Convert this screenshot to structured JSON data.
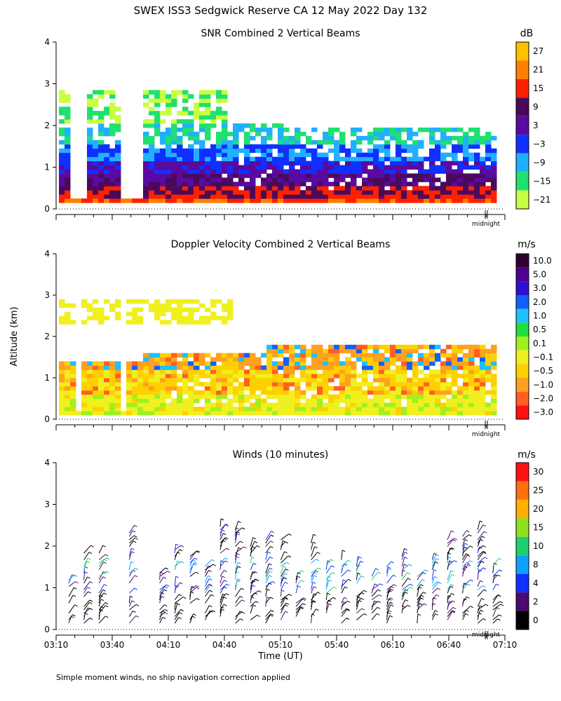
{
  "page": {
    "title": "SWEX ISS3 Sedgwick Reserve CA  12 May 2022 Day 132",
    "y_axis_label": "Altitude (km)",
    "x_axis_label": "Time (UT)",
    "footnote": "Simple moment winds, no ship navigation correction applied",
    "midnight_label": "midnight"
  },
  "chart_data": [
    {
      "type": "heatmap",
      "title": "SNR Combined 2 Vertical Beams",
      "ylim": [
        0,
        4
      ],
      "yticks": [
        "0",
        "1",
        "2",
        "3",
        "4"
      ],
      "colorbar": {
        "unit": "dB",
        "labels": [
          "27",
          "21",
          "15",
          "9",
          "3",
          "−3",
          "−9",
          "−15",
          "−21"
        ],
        "colors": [
          "#ffc000",
          "#ff8000",
          "#ff2000",
          "#4a0a5c",
          "#5a0aa0",
          "#1030ff",
          "#20b0ff",
          "#20e070",
          "#c8ff40"
        ]
      }
    },
    {
      "type": "heatmap",
      "title": "Doppler Velocity Combined 2 Vertical Beams",
      "ylim": [
        0,
        4
      ],
      "yticks": [
        "0",
        "1",
        "2",
        "3",
        "4"
      ],
      "colorbar": {
        "unit": "m/s",
        "labels": [
          "10.0",
          "5.0",
          "3.0",
          "2.0",
          "1.0",
          "0.5",
          "0.1",
          "−0.1",
          "−0.5",
          "−1.0",
          "−2.0",
          "−3.0"
        ],
        "colors": [
          "#300030",
          "#500090",
          "#3010d0",
          "#1060ff",
          "#20c0ff",
          "#20e040",
          "#a0f020",
          "#f0f020",
          "#ffd000",
          "#ffa020",
          "#ff6020",
          "#ff1010"
        ]
      }
    },
    {
      "type": "scatter",
      "title": "Winds (10 minutes)",
      "ylim": [
        0,
        4
      ],
      "yticks": [
        "0",
        "1",
        "2",
        "3",
        "4"
      ],
      "x": [
        "03:10",
        "03:40",
        "04:10",
        "04:40",
        "05:10",
        "05:40",
        "06:10",
        "06:40",
        "07:10"
      ],
      "colorbar": {
        "unit": "m/s",
        "labels": [
          "30",
          "25",
          "20",
          "15",
          "10",
          "8",
          "4",
          "2",
          "0"
        ],
        "colors": [
          "#ff1010",
          "#ff7010",
          "#ffb000",
          "#90e020",
          "#20d070",
          "#10a0ff",
          "#1030ff",
          "#4a0a70",
          "#000000"
        ]
      }
    }
  ]
}
